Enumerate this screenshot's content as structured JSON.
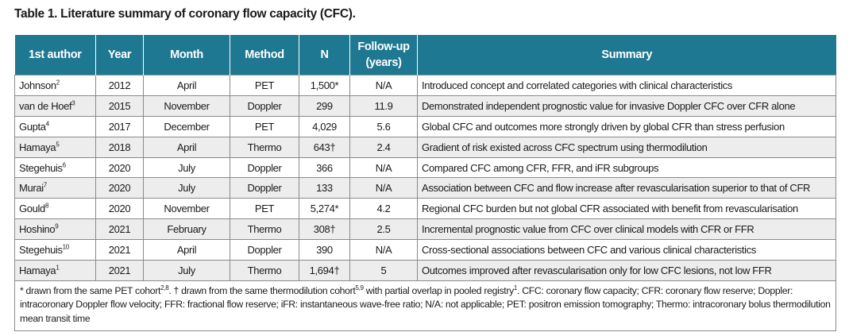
{
  "title": "Table 1. Literature summary of coronary flow capacity (CFC).",
  "table": {
    "header": [
      "1st author",
      "Year",
      "Month",
      "Method",
      "N",
      "Follow-up (years)",
      "Summary"
    ],
    "rows": [
      {
        "author": "Johnson",
        "ref": "2",
        "year": "2012",
        "month": "April",
        "method": "PET",
        "n": "1,500*",
        "followup": "N/A",
        "summary": "Introduced concept and correlated categories with clinical characteristics"
      },
      {
        "author": "van de Hoef",
        "ref": "3",
        "year": "2015",
        "month": "November",
        "method": "Doppler",
        "n": "299",
        "followup": "11.9",
        "summary": "Demonstrated independent prognostic value for invasive Doppler CFC over CFR alone"
      },
      {
        "author": "Gupta",
        "ref": "4",
        "year": "2017",
        "month": "December",
        "method": "PET",
        "n": "4,029",
        "followup": "5.6",
        "summary": "Global CFC and outcomes more strongly driven by global CFR than stress perfusion"
      },
      {
        "author": "Hamaya",
        "ref": "5",
        "year": "2018",
        "month": "April",
        "method": "Thermo",
        "n": "643†",
        "followup": "2.4",
        "summary": "Gradient of risk existed across CFC spectrum using thermodilution"
      },
      {
        "author": "Stegehuis",
        "ref": "6",
        "year": "2020",
        "month": "July",
        "method": "Doppler",
        "n": "366",
        "followup": "N/A",
        "summary": "Compared CFC among CFR, FFR, and iFR subgroups"
      },
      {
        "author": "Murai",
        "ref": "7",
        "year": "2020",
        "month": "July",
        "method": "Doppler",
        "n": "133",
        "followup": "N/A",
        "summary": "Association between CFC and flow increase after revascularisation superior to that of CFR"
      },
      {
        "author": "Gould",
        "ref": "8",
        "year": "2020",
        "month": "November",
        "method": "PET",
        "n": "5,274*",
        "followup": "4.2",
        "summary": "Regional CFC burden but not global CFR associated with benefit from revascularisation"
      },
      {
        "author": "Hoshino",
        "ref": "9",
        "year": "2021",
        "month": "February",
        "method": "Thermo",
        "n": "308†",
        "followup": "2.5",
        "summary": "Incremental prognostic value from CFC over clinical models with CFR or FFR"
      },
      {
        "author": "Stegehuis",
        "ref": "10",
        "year": "2021",
        "month": "April",
        "method": "Doppler",
        "n": "390",
        "followup": "N/A",
        "summary": "Cross-sectional associations between CFC and various clinical characteristics"
      },
      {
        "author": "Hamaya",
        "ref": "1",
        "year": "2021",
        "month": "July",
        "method": "Thermo",
        "n": "1,694†",
        "followup": "5",
        "summary": "Outcomes improved after revascularisation only for low CFC lesions, not low FFR"
      }
    ],
    "footnote": [
      "* drawn from the same PET cohort",
      "2,8",
      ". † drawn from the same thermodilution cohort",
      "5,9",
      " with partial overlap in pooled registry",
      "1",
      ". CFC: coronary flow capacity; CFR: coronary flow reserve; Doppler: intracoronary Doppler flow velocity; FFR: fractional flow reserve; iFR: instantaneous wave-free ratio; N/A: not applicable; PET: positron emission tomography; Thermo: intracoronary bolus thermodilution mean transit time"
    ]
  }
}
